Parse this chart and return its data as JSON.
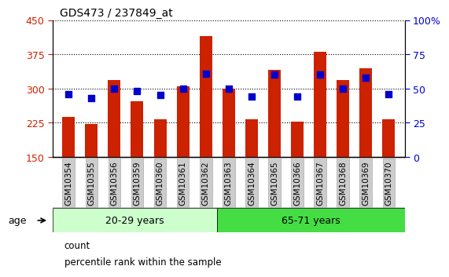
{
  "title": "GDS473 / 237849_at",
  "samples": [
    "GSM10354",
    "GSM10355",
    "GSM10356",
    "GSM10359",
    "GSM10360",
    "GSM10361",
    "GSM10362",
    "GSM10363",
    "GSM10364",
    "GSM10365",
    "GSM10366",
    "GSM10367",
    "GSM10368",
    "GSM10369",
    "GSM10370"
  ],
  "counts": [
    238,
    222,
    318,
    272,
    232,
    305,
    415,
    300,
    232,
    340,
    228,
    380,
    318,
    345,
    233
  ],
  "percentile_ranks": [
    46,
    43,
    50,
    48,
    45,
    50,
    61,
    50,
    44,
    60,
    44,
    60,
    50,
    58,
    46
  ],
  "baseline": 150,
  "ylim_left": [
    150,
    450
  ],
  "ylim_right": [
    0,
    100
  ],
  "yticks_left": [
    150,
    225,
    300,
    375,
    450
  ],
  "yticks_right": [
    0,
    25,
    50,
    75,
    100
  ],
  "ytick_labels_left": [
    "150",
    "225",
    "300",
    "375",
    "450"
  ],
  "ytick_labels_right": [
    "0",
    "25",
    "50",
    "75",
    "100%"
  ],
  "group1_label": "20-29 years",
  "group2_label": "65-71 years",
  "group1_count": 7,
  "group2_count": 8,
  "bar_color": "#cc2200",
  "dot_color": "#0000cc",
  "group1_bg": "#ccffcc",
  "group2_bg": "#44dd44",
  "tick_bg": "#cccccc",
  "legend_count_label": "count",
  "legend_pct_label": "percentile rank within the sample",
  "age_arrow_label": "age",
  "bar_width": 0.55,
  "dot_size": 38,
  "title_fontsize": 10,
  "axis_fontsize": 9,
  "tick_fontsize": 7.5,
  "legend_fontsize": 8.5
}
